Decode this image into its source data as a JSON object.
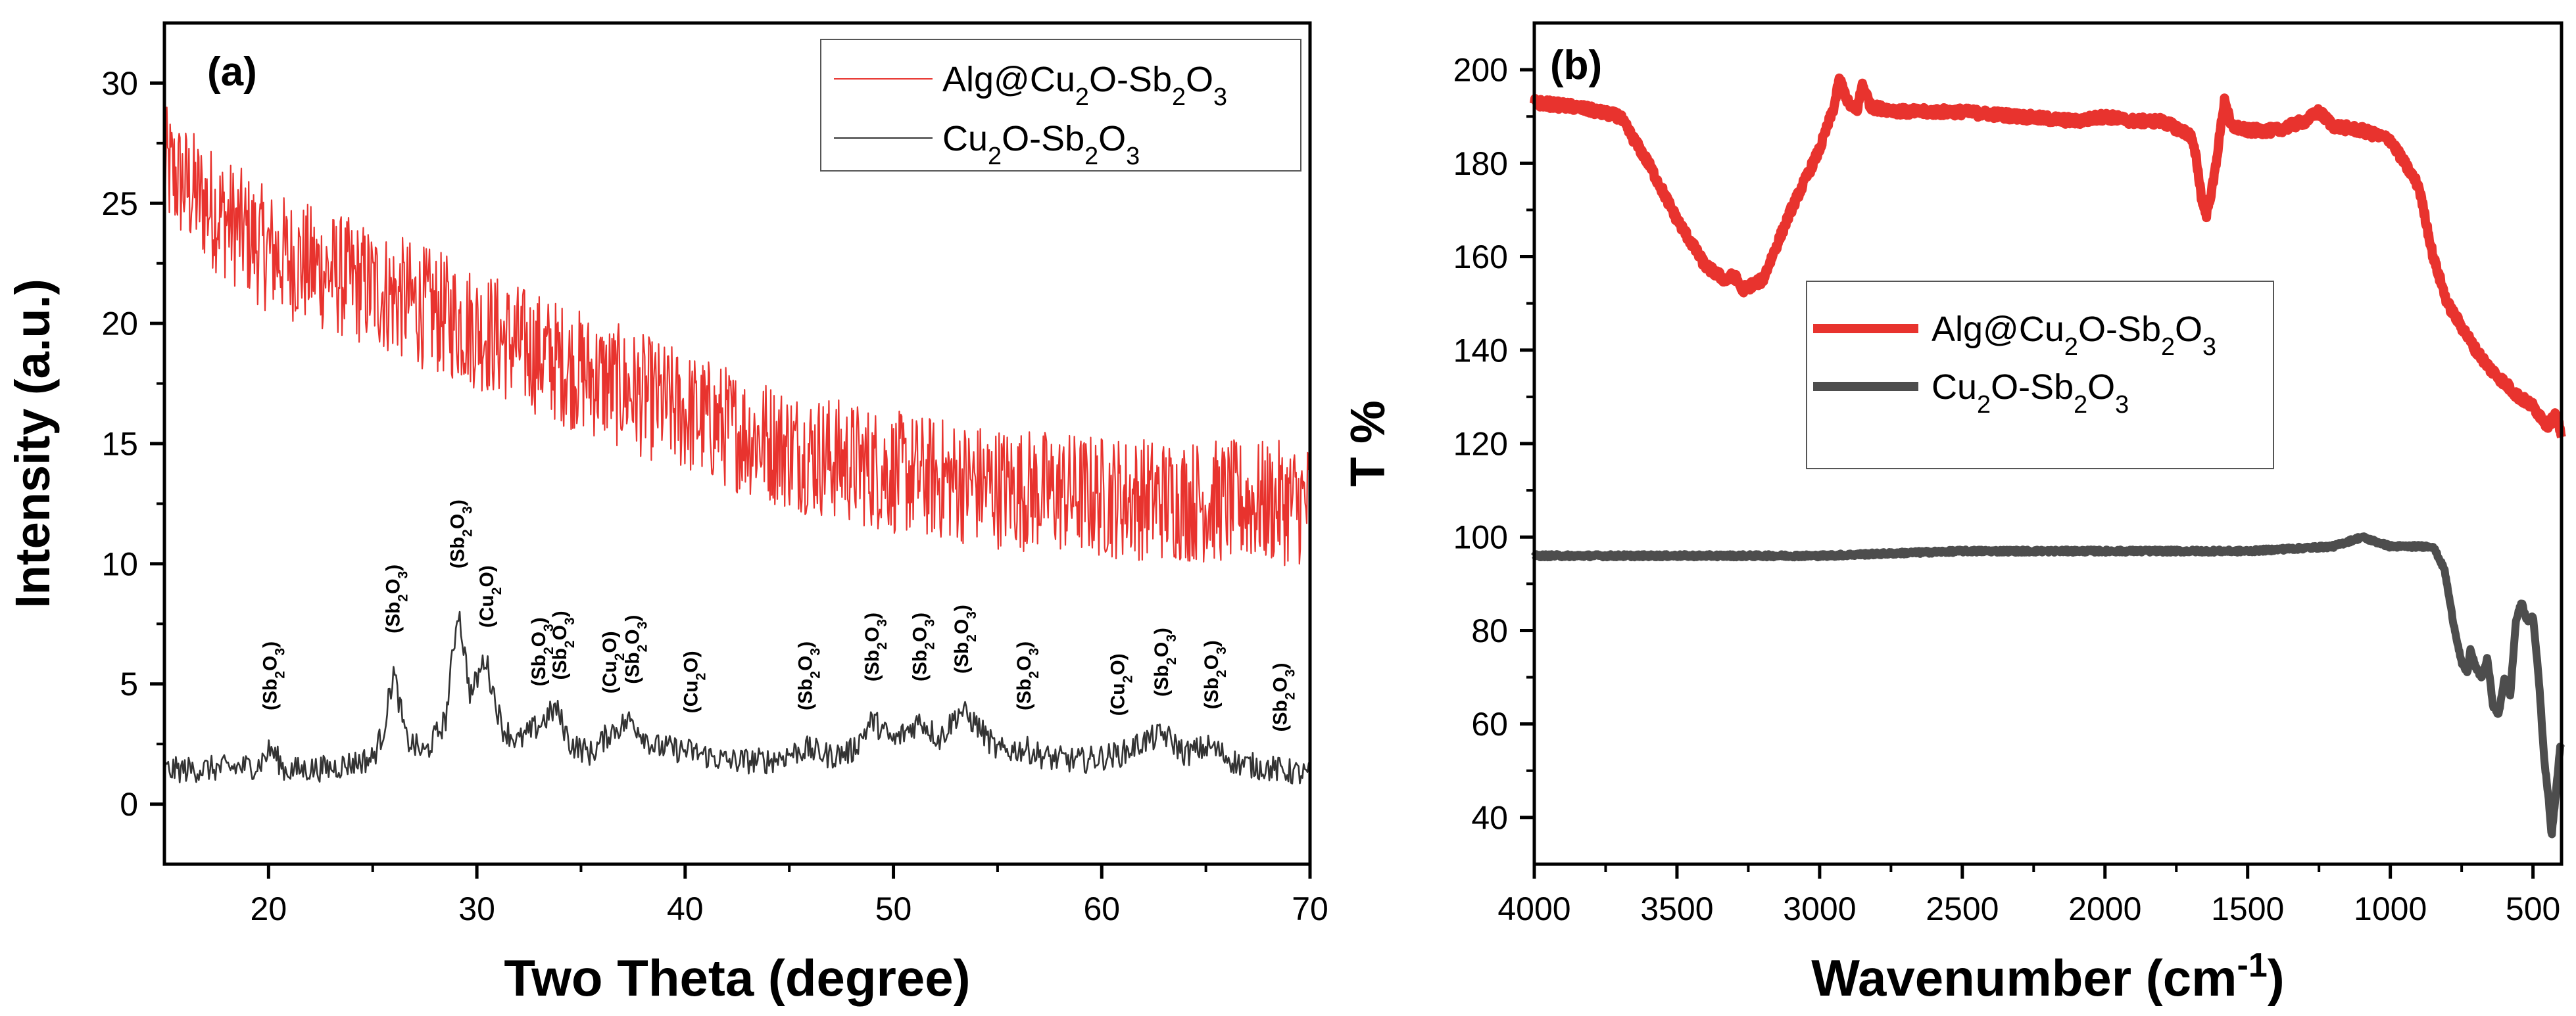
{
  "chart_data": [
    {
      "panel": "(a)",
      "type": "line",
      "xlabel": "Two Theta (degree)",
      "ylabel": "Intensity (a.u.)",
      "xlim": [
        15,
        70
      ],
      "ylim": [
        -2.5,
        32.5
      ],
      "x_ticks": [
        20,
        30,
        40,
        50,
        60,
        70
      ],
      "y_ticks": [
        0,
        5,
        10,
        15,
        20,
        25,
        30
      ],
      "legend_position": "top-right",
      "series": [
        {
          "name_parts": [
            "Alg@Cu",
            "2",
            "O-Sb",
            "2",
            "O",
            "3"
          ],
          "color": "#e8332e",
          "x": [
            15,
            17,
            20,
            25,
            30,
            35,
            40,
            45,
            50,
            55,
            60,
            65,
            70
          ],
          "y": [
            26.5,
            25,
            23,
            21.5,
            19.8,
            18,
            16.3,
            14.8,
            13.8,
            13.2,
            12.8,
            12.6,
            12.5
          ]
        },
        {
          "name_parts": [
            "Cu",
            "2",
            "O-Sb",
            "2",
            "O",
            "3"
          ],
          "color": "#333333",
          "x": [
            15,
            18,
            19.5,
            20.1,
            20.8,
            23,
            25,
            25.5,
            26,
            26.6,
            27.5,
            28.5,
            29.1,
            29.7,
            30.4,
            31.2,
            32,
            33,
            33.8,
            34.5,
            35.5,
            36.4,
            37.4,
            38.5,
            40.2,
            42,
            44,
            45.8,
            47,
            48,
            49,
            50,
            51.3,
            52.2,
            53.2,
            54,
            55,
            56.3,
            57.5,
            59,
            61,
            62,
            63,
            64,
            65.2,
            66.5,
            68,
            70
          ],
          "y": [
            1.4,
            1.5,
            1.6,
            2.3,
            1.4,
            1.5,
            1.9,
            3.0,
            5.5,
            2.7,
            2.1,
            3.5,
            8.2,
            4.5,
            6.1,
            3.2,
            2.6,
            3.3,
            4.0,
            2.5,
            2.1,
            3.0,
            3.5,
            2.4,
            2.2,
            1.8,
            1.8,
            2.3,
            2.0,
            2.2,
            3.5,
            2.6,
            3.5,
            2.7,
            3.9,
            3.3,
            2.2,
            2.3,
            1.9,
            1.8,
            2.1,
            2.6,
            2.9,
            2.1,
            2.4,
            1.7,
            1.5,
            1.2
          ]
        }
      ],
      "peak_labels": [
        {
          "x": 20.1,
          "label_parts": [
            "(Sb",
            "2",
            "O",
            "3",
            ")"
          ]
        },
        {
          "x": 26.0,
          "label_parts": [
            "(Sb",
            "2",
            "O",
            "3",
            ")"
          ]
        },
        {
          "x": 29.1,
          "label_parts": [
            "(Sb",
            "2",
            "O",
            "3",
            ")"
          ]
        },
        {
          "x": 30.5,
          "label_parts": [
            "(Cu",
            "2",
            "O)"
          ]
        },
        {
          "x": 33.0,
          "label_parts": [
            "(Sb",
            "2",
            "O",
            "3",
            ")"
          ]
        },
        {
          "x": 34.0,
          "label_parts": [
            "(Sb",
            "2",
            "O",
            "3",
            ")"
          ]
        },
        {
          "x": 36.4,
          "label_parts": [
            "(Cu",
            "2",
            "O)"
          ]
        },
        {
          "x": 37.5,
          "label_parts": [
            "(Sb",
            "2",
            "O",
            "3",
            ")"
          ]
        },
        {
          "x": 40.3,
          "label_parts": [
            "(Cu",
            "2",
            "O)"
          ]
        },
        {
          "x": 45.8,
          "label_parts": [
            "(Sb",
            "2",
            "O",
            "3",
            ")"
          ]
        },
        {
          "x": 49.0,
          "label_parts": [
            "(Sb",
            "2",
            "O",
            "3",
            ")"
          ]
        },
        {
          "x": 51.3,
          "label_parts": [
            "(Sb",
            "2",
            "O",
            "3",
            ")"
          ]
        },
        {
          "x": 53.3,
          "label_parts": [
            "(Sb",
            "2",
            "O",
            "3",
            ")"
          ]
        },
        {
          "x": 56.3,
          "label_parts": [
            "(Sb",
            "2",
            "O",
            "3",
            ")"
          ]
        },
        {
          "x": 60.8,
          "label_parts": [
            "(Cu",
            "2",
            "O)"
          ]
        },
        {
          "x": 62.9,
          "label_parts": [
            "(Sb",
            "2",
            "O",
            "3",
            ")"
          ]
        },
        {
          "x": 65.3,
          "label_parts": [
            "(Sb",
            "2",
            "O",
            "3",
            ")"
          ]
        },
        {
          "x": 68.6,
          "label_parts": [
            "(Sb",
            "2",
            "O",
            "3",
            ")"
          ]
        }
      ]
    },
    {
      "panel": "(b)",
      "type": "line",
      "xlabel_parts": [
        "Wavenumber (cm",
        "-1",
        ")"
      ],
      "ylabel": "T %",
      "xlim": [
        4000,
        400
      ],
      "ylim": [
        30,
        210
      ],
      "x_ticks": [
        4000,
        3500,
        3000,
        2500,
        2000,
        1500,
        1000,
        500
      ],
      "y_ticks": [
        40,
        60,
        80,
        100,
        120,
        140,
        160,
        180,
        200
      ],
      "legend_position": "center",
      "series": [
        {
          "name_parts": [
            "Alg@Cu",
            "2",
            "O-Sb",
            "2",
            "O",
            "3"
          ],
          "color": "#e8332e",
          "x": [
            4000,
            3850,
            3700,
            3600,
            3500,
            3400,
            3330,
            3300,
            3270,
            3200,
            3100,
            3000,
            2950,
            2930,
            2900,
            2870,
            2850,
            2820,
            2700,
            2500,
            2300,
            2100,
            2000,
            1900,
            1800,
            1700,
            1680,
            1660,
            1645,
            1620,
            1600,
            1580,
            1560,
            1500,
            1400,
            1300,
            1250,
            1200,
            1100,
            1000,
            900,
            850,
            800,
            750,
            700,
            650,
            600,
            550,
            500,
            450,
            420,
            400
          ],
          "y": [
            193,
            192,
            190,
            180,
            168,
            158,
            155,
            156,
            153,
            155,
            170,
            183,
            192,
            198,
            193,
            191,
            197,
            192,
            191,
            191,
            190,
            189,
            190,
            189,
            189,
            186,
            181,
            172,
            169,
            176,
            185,
            194,
            188,
            187,
            187,
            189,
            191,
            188,
            187,
            185,
            175,
            160,
            150,
            145,
            140,
            136,
            133,
            130,
            128,
            124,
            126,
            122
          ]
        },
        {
          "name_parts": [
            "Cu",
            "2",
            "O-Sb",
            "2",
            "O",
            "3"
          ],
          "color": "#4d4d4d",
          "x": [
            4000,
            3500,
            3000,
            2500,
            2100,
            2000,
            1950,
            1500,
            1200,
            1100,
            1000,
            900,
            850,
            810,
            780,
            750,
            730,
            720,
            700,
            680,
            660,
            640,
            620,
            600,
            580,
            560,
            540,
            520,
            500,
            480,
            460,
            445,
            435,
            420,
            405
          ],
          "y": [
            96,
            96,
            96,
            97,
            97,
            97,
            97,
            97,
            98,
            100,
            98,
            98,
            98,
            93,
            82,
            73,
            71,
            76,
            72,
            70,
            74,
            64,
            62,
            70,
            66,
            82,
            86,
            82,
            83,
            70,
            52,
            44,
            36,
            45,
            55
          ]
        }
      ]
    }
  ]
}
